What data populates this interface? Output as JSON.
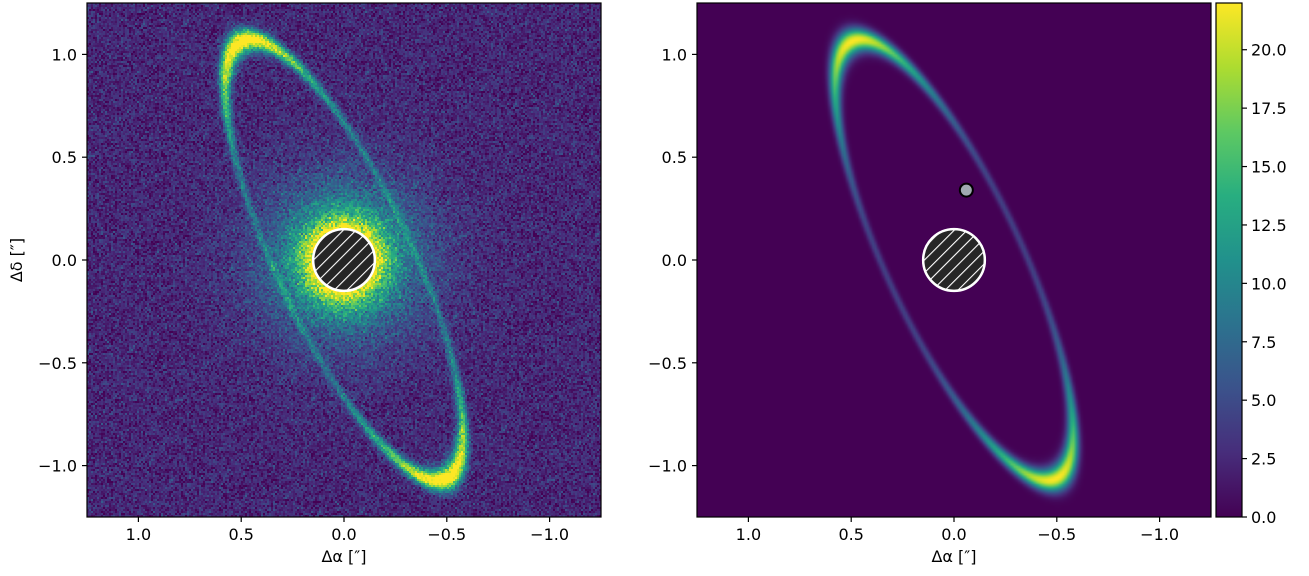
{
  "chart_data": [
    {
      "type": "heatmap",
      "panel": "observed image",
      "xlabel": "Δα [″]",
      "ylabel": "Δδ [″]",
      "xlim": [
        1.25,
        -1.25
      ],
      "ylim": [
        -1.25,
        1.25
      ],
      "x_ticks": [
        1.0,
        0.5,
        0.0,
        -0.5,
        -1.0
      ],
      "x_tick_labels": [
        "1.0",
        "0.5",
        "0.0",
        "−0.5",
        "−1.0"
      ],
      "y_ticks": [
        1.0,
        0.5,
        0.0,
        -0.5,
        -1.0
      ],
      "y_tick_labels": [
        "1.0",
        "0.5",
        "0.0",
        "−0.5",
        "−1.0"
      ],
      "colormap": "viridis",
      "color_range": [
        0.0,
        22.0
      ],
      "background_level": 2.5,
      "noise": true,
      "disk": {
        "center": [
          0.0,
          0.0
        ],
        "semi_major_axis": 1.17,
        "semi_minor_axis": 0.33,
        "position_angle_deg": 25,
        "peak_brightness_near": [
          [
            0.5,
            0.93
          ],
          [
            -0.52,
            -0.93
          ]
        ]
      },
      "central_mask": {
        "center": [
          0.0,
          0.0
        ],
        "radius": 0.15,
        "style": "hatched"
      }
    },
    {
      "type": "heatmap",
      "panel": "model image",
      "xlabel": "Δα [″]",
      "ylabel": "",
      "xlim": [
        1.25,
        -1.25
      ],
      "ylim": [
        -1.25,
        1.25
      ],
      "x_ticks": [
        1.0,
        0.5,
        0.0,
        -0.5,
        -1.0
      ],
      "x_tick_labels": [
        "1.0",
        "0.5",
        "0.0",
        "−0.5",
        "−1.0"
      ],
      "y_ticks": [
        1.0,
        0.5,
        0.0,
        -0.5,
        -1.0
      ],
      "y_tick_labels": [
        "1.0",
        "0.5",
        "0.0",
        "−0.5",
        "−1.0"
      ],
      "colormap": "viridis",
      "color_range": [
        0.0,
        22.0
      ],
      "background_level": 0.0,
      "noise": false,
      "disk": {
        "center": [
          0.0,
          0.0
        ],
        "semi_major_axis": 1.17,
        "semi_minor_axis": 0.33,
        "position_angle_deg": 25,
        "peak_brightness_near": [
          [
            0.5,
            0.93
          ],
          [
            -0.52,
            -0.93
          ]
        ]
      },
      "central_mask": {
        "center": [
          0.0,
          0.0
        ],
        "radius": 0.15,
        "style": "hatched"
      },
      "marker": {
        "x": -0.06,
        "y": 0.34,
        "color": "#a0aab0"
      },
      "colorbar": {
        "ticks": [
          0.0,
          2.5,
          5.0,
          7.5,
          10.0,
          12.5,
          15.0,
          17.5,
          20.0
        ],
        "tick_labels": [
          "0.0",
          "2.5",
          "5.0",
          "7.5",
          "10.0",
          "12.5",
          "15.0",
          "17.5",
          "20.0"
        ],
        "range": [
          0.0,
          22.0
        ]
      }
    }
  ]
}
